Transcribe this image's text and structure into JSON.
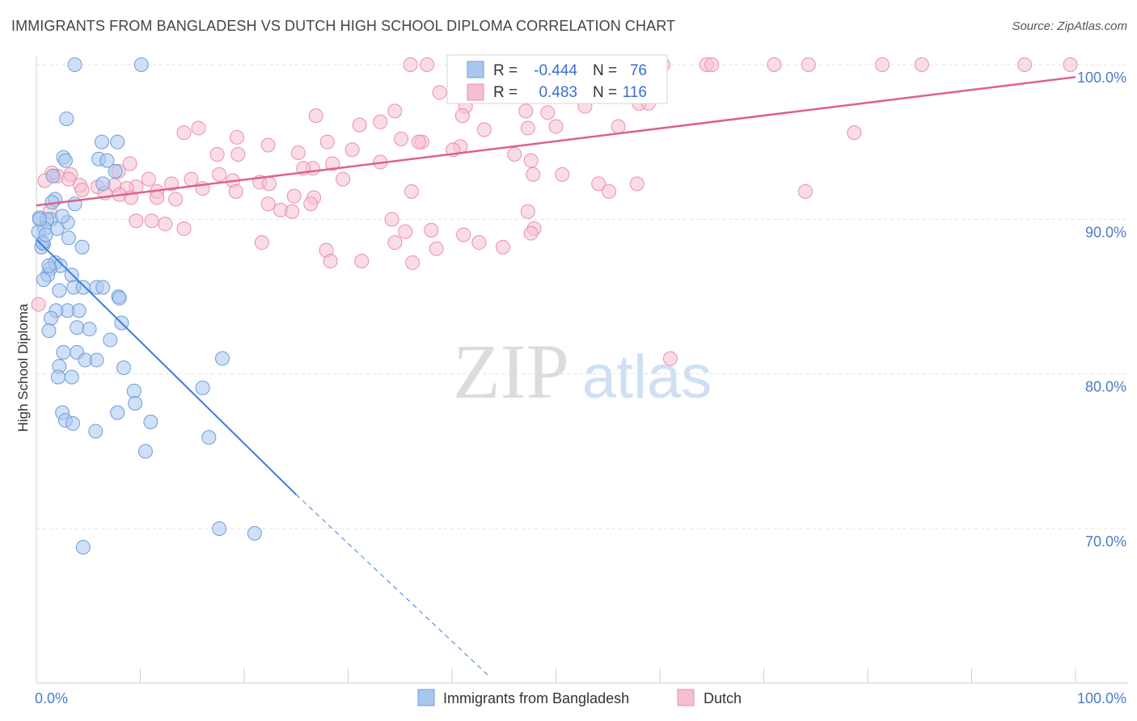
{
  "header": {
    "title": "IMMIGRANTS FROM BANGLADESH VS DUTCH HIGH SCHOOL DIPLOMA CORRELATION CHART",
    "source": "Source: ZipAtlas.com"
  },
  "watermark": {
    "zip": "ZIP",
    "atlas": "atlas"
  },
  "legend_box": {
    "rows": [
      {
        "r_label": "R =",
        "r_value": "-0.444",
        "n_label": "N =",
        "n_value": "76"
      },
      {
        "r_label": "R =",
        "r_value": " 0.483",
        "n_label": "N =",
        "n_value": "116"
      }
    ]
  },
  "colors": {
    "blue_fill": "#a9c6ef",
    "blue_stroke": "#6f9ddc",
    "blue_line": "#3b7dd8",
    "pink_fill": "#f6bfd0",
    "pink_stroke": "#e98fae",
    "pink_line": "#e0608b",
    "grid": "#e3e3e3",
    "axis_text": "#4a7cc9"
  },
  "chart_data": {
    "type": "scatter",
    "ylabel": "High School Diploma",
    "xlabel": "",
    "xlim": [
      0,
      100
    ],
    "ylim": [
      60.5,
      101.5
    ],
    "x_tick_labels": [
      "0.0%",
      "100.0%"
    ],
    "y_ticks": [
      70,
      80,
      90,
      100
    ],
    "y_tick_labels": [
      "70.0%",
      "80.0%",
      "90.0%",
      "100.0%"
    ],
    "grid": true,
    "legend_position": "bottom",
    "series": [
      {
        "name": "Immigrants from Bangladesh",
        "color": "#a9c6ef",
        "trend": {
          "x0": 0,
          "y0": 88.7,
          "x1": 25,
          "y1": 72.2,
          "dashed_to_x": 43.5,
          "dashed_to_y": 60.5
        },
        "points": [
          [
            3.7,
            100
          ],
          [
            10.1,
            100
          ],
          [
            2.9,
            96.5
          ],
          [
            6.3,
            95
          ],
          [
            7.8,
            95
          ],
          [
            2.6,
            94
          ],
          [
            6.0,
            93.9
          ],
          [
            6.8,
            93.8
          ],
          [
            2.8,
            93.8
          ],
          [
            7.6,
            93.1
          ],
          [
            6.4,
            92.3
          ],
          [
            1.6,
            92.8
          ],
          [
            1.8,
            91.3
          ],
          [
            1.5,
            91.1
          ],
          [
            3.7,
            91.0
          ],
          [
            0.3,
            90.1
          ],
          [
            1.4,
            90.0
          ],
          [
            1.0,
            90.0
          ],
          [
            3.0,
            89.8
          ],
          [
            0.8,
            89.4
          ],
          [
            2.0,
            89.4
          ],
          [
            0.2,
            89.2
          ],
          [
            3.1,
            88.8
          ],
          [
            0.7,
            88.4
          ],
          [
            0.5,
            88.2
          ],
          [
            4.4,
            88.2
          ],
          [
            1.8,
            87.2
          ],
          [
            2.3,
            87.0
          ],
          [
            1.3,
            86.8
          ],
          [
            3.4,
            86.4
          ],
          [
            1.1,
            86.4
          ],
          [
            0.7,
            86.1
          ],
          [
            3.6,
            85.6
          ],
          [
            4.5,
            85.6
          ],
          [
            5.8,
            85.6
          ],
          [
            6.4,
            85.6
          ],
          [
            2.2,
            85.4
          ],
          [
            7.9,
            85.0
          ],
          [
            8.0,
            84.9
          ],
          [
            3.0,
            84.1
          ],
          [
            1.9,
            84.1
          ],
          [
            4.1,
            84.1
          ],
          [
            1.4,
            83.6
          ],
          [
            8.2,
            83.3
          ],
          [
            3.9,
            83.0
          ],
          [
            5.1,
            82.9
          ],
          [
            1.2,
            82.8
          ],
          [
            7.1,
            82.2
          ],
          [
            3.9,
            81.4
          ],
          [
            2.6,
            81.4
          ],
          [
            17.9,
            81.0
          ],
          [
            4.7,
            80.9
          ],
          [
            5.8,
            80.9
          ],
          [
            2.2,
            80.5
          ],
          [
            8.4,
            80.4
          ],
          [
            2.1,
            79.8
          ],
          [
            3.4,
            79.8
          ],
          [
            16.0,
            79.1
          ],
          [
            9.4,
            78.9
          ],
          [
            9.5,
            78.1
          ],
          [
            7.8,
            77.5
          ],
          [
            2.5,
            77.5
          ],
          [
            2.8,
            77.0
          ],
          [
            11.0,
            76.9
          ],
          [
            3.5,
            76.8
          ],
          [
            5.7,
            76.3
          ],
          [
            16.6,
            75.9
          ],
          [
            10.5,
            75.0
          ],
          [
            17.6,
            70.0
          ],
          [
            21.0,
            69.7
          ],
          [
            4.5,
            68.8
          ],
          [
            0.3,
            90.0
          ],
          [
            0.6,
            88.5
          ],
          [
            1.2,
            87.0
          ],
          [
            2.5,
            90.2
          ],
          [
            0.9,
            89.0
          ]
        ]
      },
      {
        "name": "Dutch",
        "color": "#f6bfd0",
        "trend": {
          "x0": 0,
          "y0": 90.9,
          "x1": 100,
          "y1": 99.2
        },
        "points": [
          [
            37.6,
            100
          ],
          [
            43.5,
            100
          ],
          [
            53.0,
            100
          ],
          [
            60.3,
            100
          ],
          [
            64.5,
            100
          ],
          [
            65.0,
            100
          ],
          [
            71.0,
            100
          ],
          [
            74.3,
            100
          ],
          [
            81.4,
            100
          ],
          [
            85.2,
            100
          ],
          [
            95.1,
            100
          ],
          [
            99.5,
            100
          ],
          [
            38.8,
            98.2
          ],
          [
            42.8,
            98.1
          ],
          [
            58.0,
            97.5
          ],
          [
            58.9,
            97.5
          ],
          [
            41.3,
            97.3
          ],
          [
            52.8,
            97.3
          ],
          [
            34.5,
            97.0
          ],
          [
            47.1,
            97.0
          ],
          [
            49.2,
            96.9
          ],
          [
            41.0,
            96.7
          ],
          [
            26.9,
            96.7
          ],
          [
            33.1,
            96.3
          ],
          [
            31.1,
            96.1
          ],
          [
            47.3,
            95.9
          ],
          [
            15.6,
            95.9
          ],
          [
            43.1,
            95.8
          ],
          [
            14.2,
            95.6
          ],
          [
            78.7,
            95.6
          ],
          [
            19.3,
            95.3
          ],
          [
            35.1,
            95.2
          ],
          [
            28.0,
            95.0
          ],
          [
            37.1,
            95.0
          ],
          [
            36.8,
            95.0
          ],
          [
            22.3,
            94.8
          ],
          [
            40.8,
            94.7
          ],
          [
            30.4,
            94.5
          ],
          [
            40.1,
            94.5
          ],
          [
            25.2,
            94.3
          ],
          [
            46.0,
            94.2
          ],
          [
            17.4,
            94.2
          ],
          [
            19.4,
            94.2
          ],
          [
            47.6,
            93.8
          ],
          [
            33.1,
            93.7
          ],
          [
            28.5,
            93.6
          ],
          [
            9.0,
            93.6
          ],
          [
            26.6,
            93.3
          ],
          [
            25.7,
            93.3
          ],
          [
            7.9,
            93.1
          ],
          [
            17.6,
            92.9
          ],
          [
            50.6,
            92.9
          ],
          [
            47.8,
            92.9
          ],
          [
            3.3,
            92.9
          ],
          [
            2.0,
            92.8
          ],
          [
            29.5,
            92.6
          ],
          [
            14.9,
            92.6
          ],
          [
            10.8,
            92.6
          ],
          [
            3.1,
            92.6
          ],
          [
            18.9,
            92.5
          ],
          [
            57.8,
            92.3
          ],
          [
            21.5,
            92.4
          ],
          [
            54.1,
            92.3
          ],
          [
            22.4,
            92.3
          ],
          [
            13.0,
            92.3
          ],
          [
            4.2,
            92.2
          ],
          [
            7.5,
            92.2
          ],
          [
            9.6,
            92.1
          ],
          [
            5.9,
            92.1
          ],
          [
            8.7,
            92.0
          ],
          [
            16.0,
            92.0
          ],
          [
            4.4,
            91.9
          ],
          [
            55.1,
            91.8
          ],
          [
            74.0,
            91.8
          ],
          [
            36.1,
            91.8
          ],
          [
            11.6,
            91.8
          ],
          [
            6.6,
            91.7
          ],
          [
            19.2,
            91.8
          ],
          [
            8.0,
            91.6
          ],
          [
            24.8,
            91.5
          ],
          [
            26.7,
            91.4
          ],
          [
            9.1,
            91.4
          ],
          [
            11.6,
            91.4
          ],
          [
            13.4,
            91.3
          ],
          [
            22.3,
            91.0
          ],
          [
            26.4,
            91.0
          ],
          [
            23.5,
            90.6
          ],
          [
            24.6,
            90.5
          ],
          [
            47.3,
            90.5
          ],
          [
            1.3,
            90.5
          ],
          [
            34.2,
            90.0
          ],
          [
            9.6,
            89.9
          ],
          [
            11.1,
            89.9
          ],
          [
            12.4,
            89.7
          ],
          [
            14.2,
            89.4
          ],
          [
            47.9,
            89.4
          ],
          [
            38.0,
            89.3
          ],
          [
            47.6,
            89.1
          ],
          [
            35.5,
            89.2
          ],
          [
            41.1,
            89.0
          ],
          [
            42.6,
            88.5
          ],
          [
            34.5,
            88.5
          ],
          [
            21.7,
            88.5
          ],
          [
            44.9,
            88.2
          ],
          [
            38.5,
            88.1
          ],
          [
            27.9,
            88.0
          ],
          [
            28.3,
            87.3
          ],
          [
            31.3,
            87.3
          ],
          [
            36.2,
            87.2
          ],
          [
            61.0,
            81.0
          ],
          [
            0.2,
            84.5
          ],
          [
            1.5,
            93.0
          ],
          [
            0.8,
            92.5
          ],
          [
            36.0,
            100
          ],
          [
            50.0,
            96.0
          ],
          [
            56.0,
            96.0
          ]
        ]
      }
    ]
  },
  "bottom_legend": {
    "items": [
      {
        "label": "Immigrants from Bangladesh"
      },
      {
        "label": "Dutch"
      }
    ]
  }
}
